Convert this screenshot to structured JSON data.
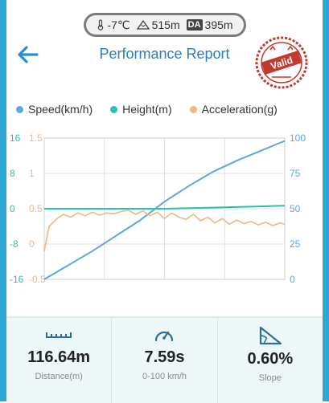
{
  "status": {
    "temperature": "-7℃",
    "altitude": "515m",
    "da_badge": "DA",
    "density_altitude": "395m"
  },
  "header": {
    "title": "Performance Report",
    "stamp_text": "Valid"
  },
  "legend": [
    {
      "label": "Speed(km/h)",
      "color": "#5aa9dd"
    },
    {
      "label": "Height(m)",
      "color": "#2bbfb1"
    },
    {
      "label": "Acceleration(g)",
      "color": "#f0b783"
    }
  ],
  "chart_data": {
    "type": "line",
    "axes": {
      "left_height_ticks": [
        "16",
        "8",
        "0",
        "-8",
        "-16"
      ],
      "left_accel_ticks": [
        "1.5",
        "1",
        "0.5",
        "0",
        "-0.5"
      ],
      "right_speed_ticks": [
        "100",
        "75",
        "50",
        "25",
        "0"
      ],
      "speed_range": [
        0,
        100
      ],
      "height_range": [
        -16,
        16
      ],
      "accel_range": [
        -0.5,
        1.5
      ]
    },
    "grid": true,
    "series": [
      {
        "name": "Speed(km/h)",
        "axis": "right",
        "color": "#5aa9dd",
        "x": [
          0,
          0.1,
          0.2,
          0.3,
          0.4,
          0.5,
          0.6,
          0.7,
          0.8,
          0.9,
          1.0
        ],
        "values": [
          0,
          10,
          20,
          31,
          42,
          55,
          66,
          76,
          84,
          91,
          98
        ]
      },
      {
        "name": "Height(m)",
        "axis": "left-height",
        "color": "#2bbfb1",
        "x": [
          0,
          0.25,
          0.5,
          0.75,
          1.0
        ],
        "values": [
          0,
          0,
          0,
          0.3,
          0.7
        ]
      },
      {
        "name": "Acceleration(g)",
        "axis": "left-accel",
        "color": "#f0b783",
        "x": [
          0,
          0.02,
          0.05,
          0.08,
          0.11,
          0.14,
          0.17,
          0.2,
          0.23,
          0.26,
          0.29,
          0.32,
          0.35,
          0.38,
          0.41,
          0.44,
          0.47,
          0.5,
          0.53,
          0.56,
          0.59,
          0.62,
          0.65,
          0.68,
          0.71,
          0.74,
          0.77,
          0.8,
          0.83,
          0.86,
          0.89,
          0.92,
          0.95,
          0.98,
          1.0
        ],
        "values": [
          -0.1,
          0.25,
          0.35,
          0.42,
          0.38,
          0.44,
          0.4,
          0.45,
          0.41,
          0.44,
          0.43,
          0.46,
          0.48,
          0.42,
          0.47,
          0.4,
          0.45,
          0.36,
          0.44,
          0.38,
          0.35,
          0.42,
          0.33,
          0.38,
          0.3,
          0.36,
          0.28,
          0.34,
          0.29,
          0.32,
          0.27,
          0.31,
          0.26,
          0.3,
          0.28
        ]
      }
    ]
  },
  "stats": [
    {
      "icon": "ruler-icon",
      "value": "116.64m",
      "label": "Distance(m)"
    },
    {
      "icon": "speedometer-icon",
      "value": "7.59s",
      "label": "0-100 km/h"
    },
    {
      "icon": "slope-icon",
      "value": "0.60%",
      "label": "Slope"
    }
  ]
}
